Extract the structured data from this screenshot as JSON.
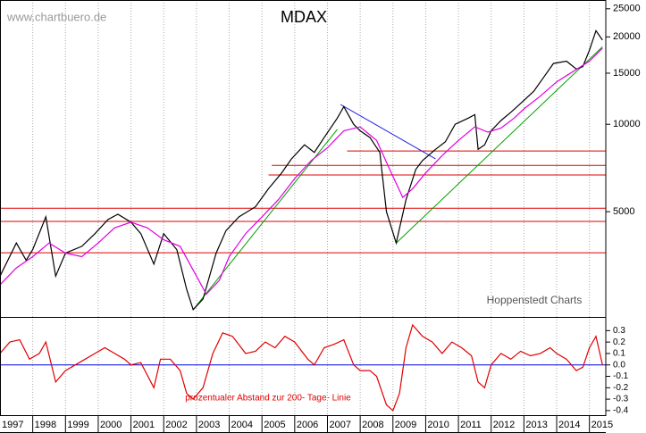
{
  "chart_data": [
    {
      "type": "line",
      "title": "MDAX",
      "source": "www.chartbuero.de",
      "credit": "Hoppenstedt Charts",
      "log_scale": true,
      "xlim": [
        1997,
        2015.5
      ],
      "ylim": [
        2170,
        26800
      ],
      "yticks": [
        5000,
        10000,
        15000,
        20000,
        25000
      ],
      "series": [
        {
          "color": "#000000",
          "x": [
            1997.0,
            1997.5,
            1997.8,
            1998.0,
            1998.4,
            1998.7,
            1999.0,
            1999.5,
            1999.9,
            2000.3,
            2000.6,
            2001.0,
            2001.3,
            2001.7,
            2002.0,
            2002.4,
            2002.7,
            2002.9,
            2003.2,
            2003.6,
            2003.9,
            2004.3,
            2004.8,
            2005.2,
            2005.6,
            2005.9,
            2006.3,
            2006.6,
            2006.9,
            2007.3,
            2007.5,
            2007.8,
            2008.0,
            2008.3,
            2008.6,
            2008.8,
            2009.1,
            2009.4,
            2009.7,
            2009.9,
            2010.3,
            2010.6,
            2010.9,
            2011.3,
            2011.5,
            2011.6,
            2011.8,
            2012.0,
            2012.3,
            2012.6,
            2012.9,
            2013.3,
            2013.6,
            2013.9,
            2014.3,
            2014.6,
            2014.8,
            2015.0,
            2015.2,
            2015.4
          ],
          "values": [
            3000,
            3900,
            3400,
            3700,
            4800,
            3000,
            3600,
            3800,
            4200,
            4700,
            4900,
            4600,
            4200,
            3300,
            4200,
            3700,
            2700,
            2300,
            2500,
            3600,
            4300,
            4800,
            5200,
            6000,
            6800,
            7600,
            8500,
            8000,
            9000,
            10500,
            11500,
            10000,
            9500,
            9000,
            8000,
            5000,
            3900,
            5500,
            7000,
            7500,
            8200,
            8700,
            10000,
            10500,
            10800,
            8200,
            8500,
            9500,
            10300,
            11000,
            11800,
            13000,
            14500,
            16200,
            16500,
            15500,
            15800,
            18000,
            21000,
            19500
          ]
        },
        {
          "color": "#e000e0",
          "x": [
            1997.0,
            1997.5,
            1998.0,
            1998.5,
            1999.0,
            1999.5,
            2000.0,
            2000.5,
            2001.0,
            2001.5,
            2002.0,
            2002.5,
            2003.0,
            2003.3,
            2003.7,
            2004.0,
            2004.5,
            2005.0,
            2005.5,
            2006.0,
            2006.5,
            2007.0,
            2007.5,
            2008.0,
            2008.5,
            2008.9,
            2009.3,
            2009.6,
            2010.0,
            2010.5,
            2011.0,
            2011.5,
            2011.9,
            2012.3,
            2012.7,
            2013.0,
            2013.5,
            2014.0,
            2014.5,
            2015.0,
            2015.4
          ],
          "values": [
            2800,
            3200,
            3500,
            3900,
            3600,
            3500,
            3900,
            4400,
            4600,
            4400,
            4000,
            3800,
            3000,
            2600,
            2900,
            3500,
            4200,
            4800,
            5500,
            6500,
            7500,
            8300,
            9500,
            9800,
            8800,
            7000,
            5600,
            6000,
            6800,
            7800,
            8800,
            9800,
            9400,
            9700,
            10500,
            11300,
            12500,
            14000,
            15200,
            16500,
            18300
          ]
        }
      ],
      "levels": [
        {
          "value": 8090,
          "from": 2007.6,
          "color": "#e00000"
        },
        {
          "value": 7220,
          "from": 2005.3,
          "color": "#e00000"
        },
        {
          "value": 6690,
          "from": 2005.2,
          "color": "#e00000"
        },
        {
          "value": 5140,
          "from": 1997.0,
          "color": "#e00000"
        },
        {
          "value": 4630,
          "from": 1997.0,
          "color": "#e00000"
        },
        {
          "value": 3610,
          "from": 1997.0,
          "color": "#e00000"
        }
      ],
      "trendlines": [
        {
          "color": "#00a000",
          "x": [
            2002.9,
            2007.3
          ],
          "values": [
            2300,
            9600
          ]
        },
        {
          "color": "#00a000",
          "x": [
            2009.1,
            2015.4
          ],
          "values": [
            3900,
            18500
          ]
        },
        {
          "color": "#2020e0",
          "x": [
            2007.4,
            2010.3
          ],
          "values": [
            11700,
            7600
          ]
        }
      ]
    },
    {
      "type": "line",
      "annotation": "prozentualer Abstand zur 200- Tage- Linie",
      "xlim": [
        1997,
        2015.5
      ],
      "ylim": [
        -0.44,
        0.42
      ],
      "xticks": [
        1997,
        1998,
        1999,
        2000,
        2001,
        2002,
        2003,
        2004,
        2005,
        2006,
        2007,
        2008,
        2009,
        2010,
        2011,
        2012,
        2013,
        2014,
        2015
      ],
      "yticks": [
        0.3,
        0.2,
        0.1,
        {
          "value": 0,
          "label": "0.0"
        },
        -0.1,
        -0.2,
        -0.3,
        -0.4
      ],
      "zero_line_color": "#0000e0",
      "series": [
        {
          "color": "#e00000",
          "x": [
            1997.0,
            1997.3,
            1997.6,
            1997.9,
            1998.2,
            1998.4,
            1998.7,
            1999.0,
            1999.3,
            1999.6,
            1999.9,
            2000.2,
            2000.5,
            2000.8,
            2001.0,
            2001.3,
            2001.7,
            2001.9,
            2002.2,
            2002.5,
            2002.7,
            2002.9,
            2003.2,
            2003.5,
            2003.8,
            2004.1,
            2004.5,
            2004.8,
            2005.1,
            2005.4,
            2005.7,
            2006.0,
            2006.4,
            2006.6,
            2006.9,
            2007.2,
            2007.5,
            2007.8,
            2008.0,
            2008.3,
            2008.5,
            2008.8,
            2009.0,
            2009.2,
            2009.4,
            2009.6,
            2009.9,
            2010.2,
            2010.5,
            2010.8,
            2011.1,
            2011.4,
            2011.6,
            2011.8,
            2012.0,
            2012.3,
            2012.6,
            2012.9,
            2013.2,
            2013.5,
            2013.8,
            2014.0,
            2014.3,
            2014.6,
            2014.8,
            2015.0,
            2015.2,
            2015.4
          ],
          "values": [
            0.1,
            0.2,
            0.22,
            0.05,
            0.1,
            0.2,
            -0.15,
            -0.05,
            0.0,
            0.05,
            0.1,
            0.15,
            0.1,
            0.05,
            0.0,
            0.02,
            -0.2,
            0.05,
            0.05,
            -0.05,
            -0.25,
            -0.3,
            -0.2,
            0.1,
            0.28,
            0.25,
            0.1,
            0.12,
            0.2,
            0.15,
            0.25,
            0.2,
            0.05,
            0.0,
            0.15,
            0.18,
            0.22,
            0.0,
            -0.05,
            -0.05,
            -0.1,
            -0.35,
            -0.4,
            -0.25,
            0.15,
            0.35,
            0.25,
            0.2,
            0.1,
            0.2,
            0.15,
            0.08,
            -0.15,
            -0.2,
            0.0,
            0.1,
            0.05,
            0.12,
            0.08,
            0.1,
            0.15,
            0.1,
            0.05,
            -0.05,
            -0.02,
            0.15,
            0.25,
            0.0
          ]
        }
      ]
    }
  ]
}
